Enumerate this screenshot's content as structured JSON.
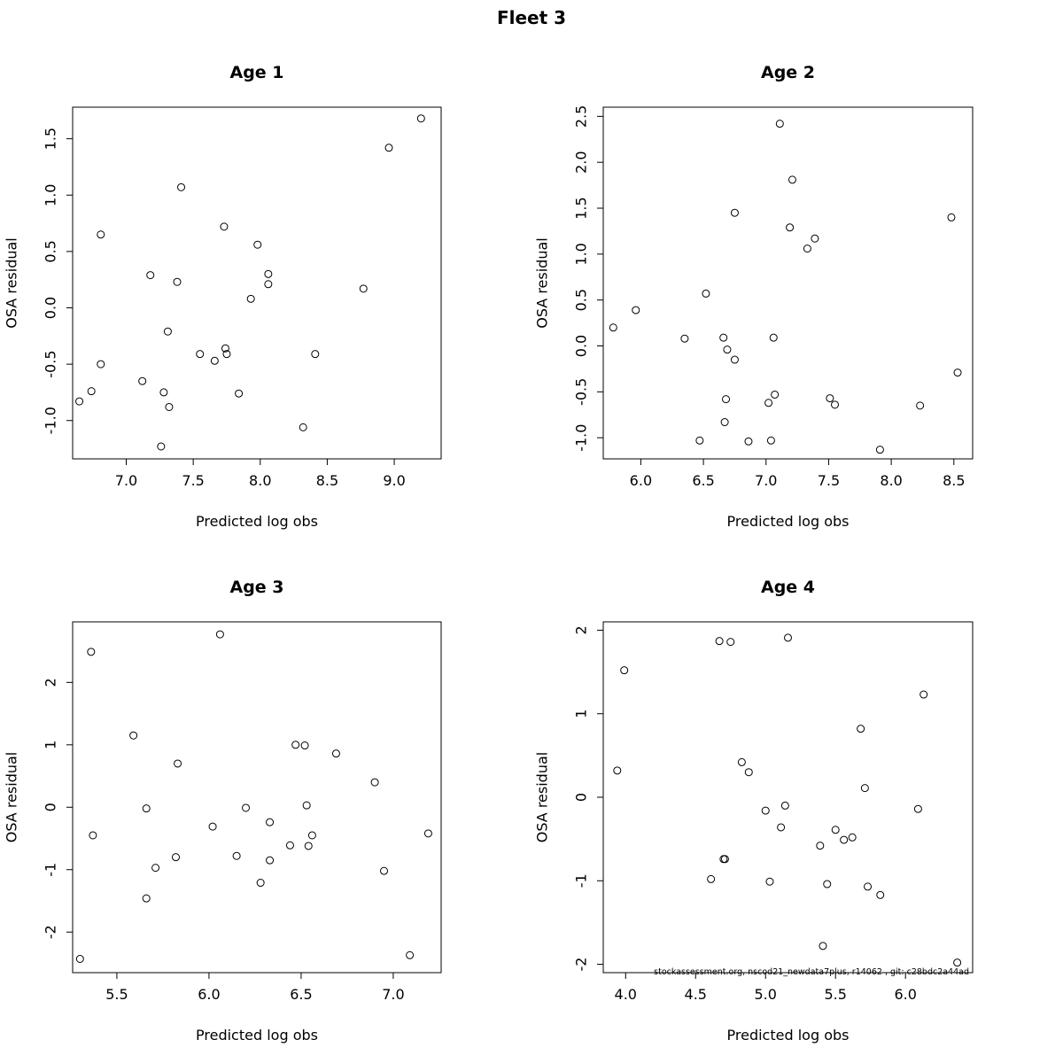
{
  "figure": {
    "title": "Fleet 3",
    "footer": "stockassessment.org, nscod21_newdata7plus, r14062 , git: c28bdc2a44ad"
  },
  "chart_data": [
    {
      "type": "scatter",
      "title": "Age 1",
      "xlabel": "Predicted log obs",
      "ylabel": "OSA residual",
      "xlim": [
        6.6,
        9.35
      ],
      "ylim": [
        -1.34,
        1.78
      ],
      "xticks": [
        7.0,
        7.5,
        8.0,
        8.5,
        9.0
      ],
      "xtick_labels": [
        "7.0",
        "7.5",
        "8.0",
        "8.5",
        "9.0"
      ],
      "yticks": [
        -1.0,
        -0.5,
        0.0,
        0.5,
        1.0,
        1.5
      ],
      "ytick_labels": [
        "-1.0",
        "-0.5",
        "0.0",
        "0.5",
        "1.0",
        "1.5"
      ],
      "grid": false,
      "points": [
        {
          "x": 6.65,
          "y": -0.83
        },
        {
          "x": 6.74,
          "y": -0.74
        },
        {
          "x": 6.81,
          "y": 0.65
        },
        {
          "x": 6.81,
          "y": -0.5
        },
        {
          "x": 7.12,
          "y": -0.65
        },
        {
          "x": 7.18,
          "y": 0.29
        },
        {
          "x": 7.26,
          "y": -1.23
        },
        {
          "x": 7.28,
          "y": -0.75
        },
        {
          "x": 7.31,
          "y": -0.21
        },
        {
          "x": 7.32,
          "y": -0.88
        },
        {
          "x": 7.38,
          "y": 0.23
        },
        {
          "x": 7.41,
          "y": 1.07
        },
        {
          "x": 7.55,
          "y": -0.41
        },
        {
          "x": 7.66,
          "y": -0.47
        },
        {
          "x": 7.73,
          "y": 0.72
        },
        {
          "x": 7.74,
          "y": -0.36
        },
        {
          "x": 7.75,
          "y": -0.41
        },
        {
          "x": 7.84,
          "y": -0.76
        },
        {
          "x": 7.93,
          "y": 0.08
        },
        {
          "x": 7.98,
          "y": 0.56
        },
        {
          "x": 8.06,
          "y": 0.3
        },
        {
          "x": 8.06,
          "y": 0.21
        },
        {
          "x": 8.32,
          "y": -1.06
        },
        {
          "x": 8.41,
          "y": -0.41
        },
        {
          "x": 8.77,
          "y": 0.17
        },
        {
          "x": 8.96,
          "y": 1.42
        },
        {
          "x": 9.2,
          "y": 1.68
        }
      ]
    },
    {
      "type": "scatter",
      "title": "Age 2",
      "xlabel": "Predicted log obs",
      "ylabel": "OSA residual",
      "xlim": [
        5.7,
        8.65
      ],
      "ylim": [
        -1.23,
        2.6
      ],
      "xticks": [
        6.0,
        6.5,
        7.0,
        7.5,
        8.0,
        8.5
      ],
      "xtick_labels": [
        "6.0",
        "6.5",
        "7.0",
        "7.5",
        "8.0",
        "8.5"
      ],
      "yticks": [
        -1.0,
        -0.5,
        0.0,
        0.5,
        1.0,
        1.5,
        2.0,
        2.5
      ],
      "ytick_labels": [
        "-1.0",
        "-0.5",
        "0.0",
        "0.5",
        "1.0",
        "1.5",
        "2.0",
        "2.5"
      ],
      "grid": false,
      "points": [
        {
          "x": 5.78,
          "y": 0.2
        },
        {
          "x": 5.96,
          "y": 0.39
        },
        {
          "x": 6.35,
          "y": 0.08
        },
        {
          "x": 6.47,
          "y": -1.03
        },
        {
          "x": 6.52,
          "y": 0.57
        },
        {
          "x": 6.66,
          "y": 0.09
        },
        {
          "x": 6.67,
          "y": -0.83
        },
        {
          "x": 6.68,
          "y": -0.58
        },
        {
          "x": 6.69,
          "y": -0.04
        },
        {
          "x": 6.75,
          "y": 1.45
        },
        {
          "x": 6.75,
          "y": -0.15
        },
        {
          "x": 6.86,
          "y": -1.04
        },
        {
          "x": 7.02,
          "y": -0.62
        },
        {
          "x": 7.04,
          "y": -1.03
        },
        {
          "x": 7.06,
          "y": 0.09
        },
        {
          "x": 7.07,
          "y": -0.53
        },
        {
          "x": 7.11,
          "y": 2.42
        },
        {
          "x": 7.19,
          "y": 1.29
        },
        {
          "x": 7.21,
          "y": 1.81
        },
        {
          "x": 7.33,
          "y": 1.06
        },
        {
          "x": 7.39,
          "y": 1.17
        },
        {
          "x": 7.51,
          "y": -0.57
        },
        {
          "x": 7.55,
          "y": -0.64
        },
        {
          "x": 7.91,
          "y": -1.13
        },
        {
          "x": 8.23,
          "y": -0.65
        },
        {
          "x": 8.48,
          "y": 1.4
        },
        {
          "x": 8.53,
          "y": -0.29
        }
      ]
    },
    {
      "type": "scatter",
      "title": "Age 3",
      "xlabel": "Predicted log obs",
      "ylabel": "OSA residual",
      "xlim": [
        5.26,
        7.26
      ],
      "ylim": [
        -2.65,
        2.97
      ],
      "xticks": [
        5.5,
        6.0,
        6.5,
        7.0
      ],
      "xtick_labels": [
        "5.5",
        "6.0",
        "6.5",
        "7.0"
      ],
      "yticks": [
        -2,
        -1,
        0,
        1,
        2
      ],
      "ytick_labels": [
        "-2",
        "-1",
        "0",
        "1",
        "2"
      ],
      "grid": false,
      "points": [
        {
          "x": 5.3,
          "y": -2.43
        },
        {
          "x": 5.36,
          "y": 2.49
        },
        {
          "x": 5.37,
          "y": -0.45
        },
        {
          "x": 5.59,
          "y": 1.15
        },
        {
          "x": 5.66,
          "y": -0.02
        },
        {
          "x": 5.66,
          "y": -1.46
        },
        {
          "x": 5.71,
          "y": -0.97
        },
        {
          "x": 5.82,
          "y": -0.8
        },
        {
          "x": 5.83,
          "y": 0.7
        },
        {
          "x": 6.02,
          "y": -0.31
        },
        {
          "x": 6.06,
          "y": 2.77
        },
        {
          "x": 6.15,
          "y": -0.78
        },
        {
          "x": 6.2,
          "y": -0.01
        },
        {
          "x": 6.28,
          "y": -1.21
        },
        {
          "x": 6.33,
          "y": -0.24
        },
        {
          "x": 6.33,
          "y": -0.85
        },
        {
          "x": 6.44,
          "y": -0.61
        },
        {
          "x": 6.47,
          "y": 1.0
        },
        {
          "x": 6.52,
          "y": 0.99
        },
        {
          "x": 6.53,
          "y": 0.03
        },
        {
          "x": 6.54,
          "y": -0.62
        },
        {
          "x": 6.56,
          "y": -0.45
        },
        {
          "x": 6.69,
          "y": 0.86
        },
        {
          "x": 6.9,
          "y": 0.4
        },
        {
          "x": 6.95,
          "y": -1.02
        },
        {
          "x": 7.09,
          "y": -2.37
        },
        {
          "x": 7.19,
          "y": -0.42
        }
      ]
    },
    {
      "type": "scatter",
      "title": "Age 4",
      "xlabel": "Predicted log obs",
      "ylabel": "OSA residual",
      "xlim": [
        3.84,
        6.48
      ],
      "ylim": [
        -2.1,
        2.1
      ],
      "xticks": [
        4.0,
        4.5,
        5.0,
        5.5,
        6.0
      ],
      "xtick_labels": [
        "4.0",
        "4.5",
        "5.0",
        "5.5",
        "6.0"
      ],
      "yticks": [
        -2,
        -1,
        0,
        1,
        2
      ],
      "ytick_labels": [
        "-2",
        "-1",
        "0",
        "1",
        "2"
      ],
      "grid": false,
      "points": [
        {
          "x": 3.94,
          "y": 0.32
        },
        {
          "x": 3.99,
          "y": 1.52
        },
        {
          "x": 4.61,
          "y": -0.98
        },
        {
          "x": 4.67,
          "y": 1.87
        },
        {
          "x": 4.7,
          "y": -0.74
        },
        {
          "x": 4.71,
          "y": -0.74
        },
        {
          "x": 4.75,
          "y": 1.86
        },
        {
          "x": 4.83,
          "y": 0.42
        },
        {
          "x": 4.88,
          "y": 0.3
        },
        {
          "x": 5.0,
          "y": -0.16
        },
        {
          "x": 5.03,
          "y": -1.01
        },
        {
          "x": 5.11,
          "y": -0.36
        },
        {
          "x": 5.14,
          "y": -0.1
        },
        {
          "x": 5.16,
          "y": 1.91
        },
        {
          "x": 5.39,
          "y": -0.58
        },
        {
          "x": 5.41,
          "y": -1.78
        },
        {
          "x": 5.44,
          "y": -1.04
        },
        {
          "x": 5.5,
          "y": -0.39
        },
        {
          "x": 5.56,
          "y": -0.51
        },
        {
          "x": 5.62,
          "y": -0.48
        },
        {
          "x": 5.68,
          "y": 0.82
        },
        {
          "x": 5.71,
          "y": 0.11
        },
        {
          "x": 5.73,
          "y": -1.07
        },
        {
          "x": 5.82,
          "y": -1.17
        },
        {
          "x": 6.09,
          "y": -0.14
        },
        {
          "x": 6.13,
          "y": 1.23
        },
        {
          "x": 6.37,
          "y": -1.98
        }
      ]
    }
  ]
}
